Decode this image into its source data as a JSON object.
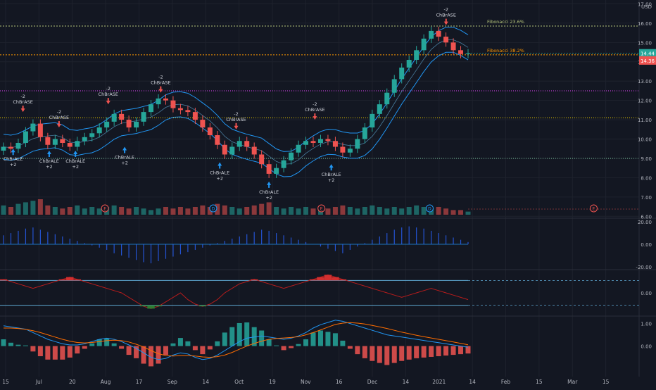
{
  "chart_data": [
    {
      "type": "candlestick",
      "currency": "USD",
      "x_axis_labels": [
        "15",
        "Jul",
        "20",
        "Aug",
        "17",
        "Sep",
        "14",
        "Oct",
        "19",
        "Nov",
        "16",
        "Dec",
        "14",
        "2021",
        "14",
        "Feb",
        "15",
        "Mar",
        "15"
      ],
      "y_ticks": [
        "17.00",
        "16.00",
        "15.00",
        "14.00",
        "13.00",
        "12.00",
        "11.00",
        "10.00",
        "9.00",
        "8.00",
        "7.00",
        "6.00"
      ],
      "ylim": [
        5.9,
        17.2
      ],
      "last_price": "14.44",
      "reference_price": "14.36",
      "fib_levels": [
        {
          "label": "Fibonacci 23.6%",
          "value": 15.85,
          "color": "#b5c47a"
        },
        {
          "label": "Fibonacci 38.2%",
          "value": 14.36,
          "color": "#ff9800"
        }
      ],
      "horizontal_levels": [
        {
          "value": 12.5,
          "color": "#e040fb"
        },
        {
          "value": 11.1,
          "color": "#f0d000"
        },
        {
          "value": 9.0,
          "color": "#7ec8a0"
        }
      ],
      "close_series": [
        9.6,
        9.5,
        9.8,
        10.4,
        10.8,
        10.1,
        9.7,
        10.0,
        9.8,
        9.6,
        9.9,
        10.1,
        10.3,
        10.6,
        10.9,
        11.3,
        11.0,
        10.6,
        10.9,
        11.4,
        11.8,
        12.1,
        12.0,
        11.6,
        11.5,
        11.4,
        11.0,
        10.6,
        10.2,
        9.7,
        9.2,
        9.6,
        9.9,
        9.6,
        9.2,
        8.7,
        8.2,
        8.5,
        8.9,
        9.3,
        9.7,
        9.9,
        9.8,
        10.0,
        9.9,
        9.6,
        9.3,
        9.5,
        10.0,
        10.6,
        11.3,
        11.8,
        12.4,
        13.1,
        13.7,
        14.1,
        14.6,
        15.2,
        15.6,
        15.3,
        15.0,
        14.6,
        14.4,
        14.44
      ],
      "signal_labels": [
        {
          "text": [
            "-2",
            "ChBrASE"
          ],
          "x": 0.035,
          "value": 11.4,
          "arrow": "down"
        },
        {
          "text": [
            "ChBrALE",
            "+2"
          ],
          "x": 0.02,
          "value": 9.5,
          "arrow": "up"
        },
        {
          "text": [
            "-2",
            "ChBrASE"
          ],
          "x": 0.09,
          "value": 10.6,
          "arrow": "down"
        },
        {
          "text": [
            "ChBrALE",
            "+2"
          ],
          "x": 0.075,
          "value": 9.4,
          "arrow": "up"
        },
        {
          "text": [
            "ChBrALE",
            "+2"
          ],
          "x": 0.115,
          "value": 9.4,
          "arrow": "up"
        },
        {
          "text": [
            "-2",
            "ChBrASE"
          ],
          "x": 0.165,
          "value": 11.8,
          "arrow": "down"
        },
        {
          "text": [
            "ChBrALE",
            "+2"
          ],
          "x": 0.19,
          "value": 9.6,
          "arrow": "up"
        },
        {
          "text": [
            "-2",
            "ChBrASE"
          ],
          "x": 0.245,
          "value": 12.4,
          "arrow": "down"
        },
        {
          "text": [
            "ChBrALE",
            "+2"
          ],
          "x": 0.335,
          "value": 8.8,
          "arrow": "up"
        },
        {
          "text": [
            "-2",
            "ChBrASE"
          ],
          "x": 0.36,
          "value": 10.5,
          "arrow": "down"
        },
        {
          "text": [
            "ChBrALE",
            "+2"
          ],
          "x": 0.41,
          "value": 7.8,
          "arrow": "up"
        },
        {
          "text": [
            "-2",
            "ChBrASE"
          ],
          "x": 0.48,
          "value": 11.0,
          "arrow": "down"
        },
        {
          "text": [
            "ChBrALE",
            "+2"
          ],
          "x": 0.505,
          "value": 8.7,
          "arrow": "up"
        },
        {
          "text": [
            "-2",
            "ChBrASE"
          ],
          "x": 0.68,
          "value": 15.9,
          "arrow": "down"
        }
      ],
      "event_markers": [
        {
          "label": "E",
          "x": 0.16
        },
        {
          "label": "D",
          "x": 0.325
        },
        {
          "label": "E",
          "x": 0.49
        },
        {
          "label": "D",
          "x": 0.655
        },
        {
          "label": "E",
          "x": 0.905
        }
      ]
    },
    {
      "type": "bar",
      "name": "volume",
      "values": [
        0.6,
        0.5,
        0.7,
        0.8,
        0.9,
        1.0,
        0.6,
        0.5,
        0.4,
        0.5,
        0.6,
        0.4,
        0.5,
        0.4,
        0.5,
        0.6,
        0.5,
        0.4,
        0.5,
        0.4,
        0.3,
        0.4,
        0.5,
        0.4,
        0.5,
        0.4,
        0.5,
        0.6,
        0.5,
        0.7,
        0.6,
        0.5,
        0.4,
        0.5,
        0.6,
        0.7,
        0.8,
        0.5,
        0.4,
        0.5,
        0.4,
        0.5,
        0.4,
        0.5,
        0.4,
        0.5,
        0.6,
        0.5,
        0.4,
        0.5,
        0.6,
        0.5,
        0.4,
        0.5,
        0.4,
        0.5,
        0.6,
        0.5,
        0.4,
        0.5,
        0.4,
        0.3,
        0.3,
        0.2
      ]
    },
    {
      "type": "bar",
      "name": "oscillator",
      "y_ticks": [
        "20.00",
        "0.00",
        "-20.00"
      ],
      "ylim": [
        -22,
        22
      ],
      "values": [
        8,
        10,
        12,
        14,
        15,
        13,
        11,
        9,
        7,
        5,
        3,
        1,
        -1,
        -3,
        -5,
        -8,
        -10,
        -12,
        -14,
        -16,
        -17,
        -15,
        -13,
        -11,
        -9,
        -7,
        -5,
        -3,
        -1,
        1,
        3,
        5,
        7,
        9,
        11,
        13,
        12,
        10,
        8,
        6,
        4,
        2,
        0,
        -2,
        -4,
        -6,
        -8,
        -5,
        -2,
        1,
        4,
        7,
        10,
        13,
        15,
        16,
        15,
        14,
        12,
        10,
        8,
        6,
        4,
        2
      ]
    },
    {
      "type": "area",
      "name": "cycle",
      "y_ticks": [
        "0.00"
      ],
      "ylim": [
        -1,
        1
      ],
      "values": [
        0.6,
        0.5,
        0.4,
        0.3,
        0.2,
        0.3,
        0.4,
        0.5,
        0.6,
        0.7,
        0.6,
        0.5,
        0.4,
        0.3,
        0.2,
        0.1,
        0.0,
        -0.2,
        -0.4,
        -0.6,
        -0.7,
        -0.6,
        -0.4,
        -0.2,
        0.0,
        -0.3,
        -0.5,
        -0.6,
        -0.5,
        -0.3,
        0.0,
        0.2,
        0.4,
        0.5,
        0.6,
        0.5,
        0.4,
        0.3,
        0.2,
        0.3,
        0.4,
        0.5,
        0.6,
        0.7,
        0.8,
        0.7,
        0.6,
        0.5,
        0.4,
        0.3,
        0.2,
        0.1,
        0.0,
        -0.1,
        -0.2,
        -0.1,
        0.0,
        0.1,
        0.2,
        0.1,
        0.0,
        -0.1,
        -0.2,
        -0.3
      ]
    },
    {
      "type": "line",
      "name": "macd",
      "y_ticks": [
        "1.00",
        "0.00"
      ],
      "ylim": [
        -1.2,
        1.3
      ],
      "series": [
        {
          "values": [
            0.9,
            0.85,
            0.8,
            0.75,
            0.6,
            0.45,
            0.3,
            0.2,
            0.1,
            0.05,
            0.05,
            0.1,
            0.2,
            0.3,
            0.35,
            0.3,
            0.2,
            0.05,
            -0.1,
            -0.3,
            -0.5,
            -0.6,
            -0.55,
            -0.4,
            -0.3,
            -0.35,
            -0.5,
            -0.6,
            -0.55,
            -0.4,
            -0.2,
            0.0,
            0.2,
            0.35,
            0.4,
            0.45,
            0.4,
            0.35,
            0.3,
            0.35,
            0.45,
            0.6,
            0.8,
            0.95,
            1.05,
            1.15,
            1.1,
            1.0,
            0.9,
            0.8,
            0.7,
            0.6,
            0.5,
            0.45,
            0.4,
            0.35,
            0.3,
            0.25,
            0.2,
            0.15,
            0.1,
            0.05,
            0.0,
            -0.05
          ]
        },
        {
          "values": [
            0.8,
            0.8,
            0.78,
            0.74,
            0.68,
            0.6,
            0.5,
            0.4,
            0.3,
            0.22,
            0.16,
            0.14,
            0.16,
            0.2,
            0.24,
            0.26,
            0.24,
            0.18,
            0.08,
            -0.04,
            -0.2,
            -0.34,
            -0.42,
            -0.44,
            -0.42,
            -0.42,
            -0.44,
            -0.48,
            -0.5,
            -0.47,
            -0.4,
            -0.28,
            -0.14,
            0.0,
            0.12,
            0.22,
            0.3,
            0.34,
            0.36,
            0.38,
            0.42,
            0.5,
            0.6,
            0.72,
            0.84,
            0.96,
            1.02,
            1.04,
            1.02,
            0.98,
            0.92,
            0.85,
            0.78,
            0.7,
            0.62,
            0.55,
            0.48,
            0.42,
            0.36,
            0.3,
            0.24,
            0.18,
            0.12,
            0.06
          ]
        }
      ]
    }
  ]
}
